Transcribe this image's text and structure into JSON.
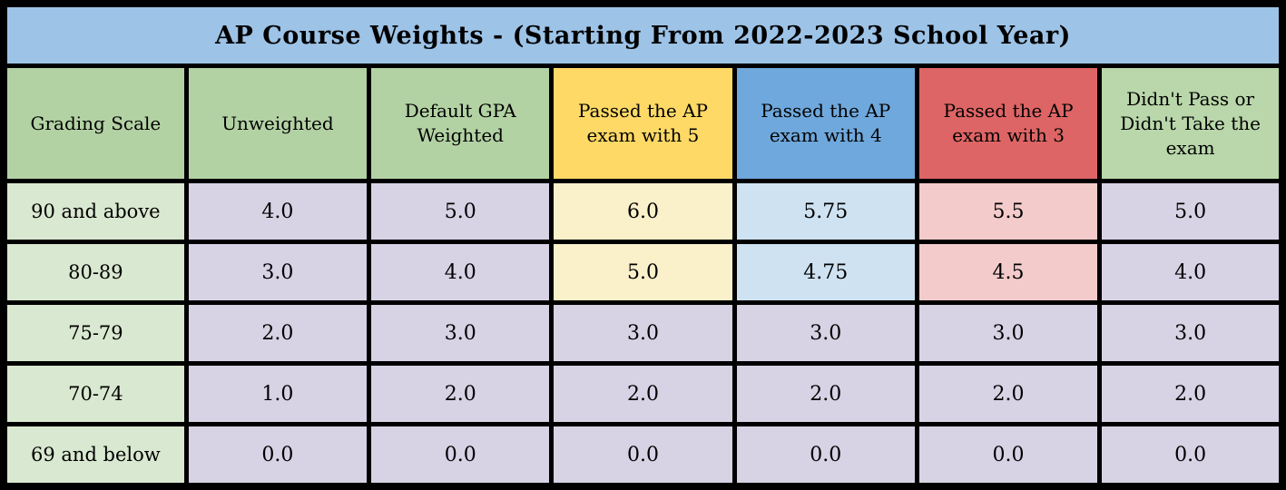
{
  "title": "AP Course Weights - (Starting From 2022-2023 School Year)",
  "colors": {
    "border": "#000000",
    "title_bg": "#9DC3E7",
    "header_green": "#B3D2A4",
    "header_yellow": "#FED966",
    "header_blue": "#6FA8DC",
    "header_red": "#DE6565",
    "header_light_green": "#B9D7AA",
    "row_label_green": "#D9E8D0",
    "cell_purple": "#D8D2E5",
    "cell_yellow": "#FAF0CA",
    "cell_blue": "#CFE2F1",
    "cell_pink": "#F3CBCB"
  },
  "table": {
    "headers": [
      "Grading Scale",
      "Unweighted",
      "Default GPA Weighted",
      "Passed the AP exam with 5",
      "Passed the AP exam with 4",
      "Passed the AP exam with 3",
      "Didn't Pass or Didn't Take the exam"
    ],
    "rows": [
      {
        "label": "90 and above",
        "values": [
          "4.0",
          "5.0",
          "6.0",
          "5.75",
          "5.5",
          "5.0"
        ]
      },
      {
        "label": "80-89",
        "values": [
          "3.0",
          "4.0",
          "5.0",
          "4.75",
          "4.5",
          "4.0"
        ]
      },
      {
        "label": "75-79",
        "values": [
          "2.0",
          "3.0",
          "3.0",
          "3.0",
          "3.0",
          "3.0"
        ]
      },
      {
        "label": "70-74",
        "values": [
          "1.0",
          "2.0",
          "2.0",
          "2.0",
          "2.0",
          "2.0"
        ]
      },
      {
        "label": "69 and below",
        "values": [
          "0.0",
          "0.0",
          "0.0",
          "0.0",
          "0.0",
          "0.0"
        ]
      }
    ]
  },
  "chart_data": {
    "type": "table",
    "title": "AP Course Weights - (Starting From 2022-2023 School Year)",
    "columns": [
      "Grading Scale",
      "Unweighted",
      "Default GPA Weighted",
      "Passed the AP exam with 5",
      "Passed the AP exam with 4",
      "Passed the AP exam with 3",
      "Didn't Pass or Didn't Take the exam"
    ],
    "rows": [
      [
        "90 and above",
        4.0,
        5.0,
        6.0,
        5.75,
        5.5,
        5.0
      ],
      [
        "80-89",
        3.0,
        4.0,
        5.0,
        4.75,
        4.5,
        4.0
      ],
      [
        "75-79",
        2.0,
        3.0,
        3.0,
        3.0,
        3.0,
        3.0
      ],
      [
        "70-74",
        1.0,
        2.0,
        2.0,
        2.0,
        2.0,
        2.0
      ],
      [
        "69 and below",
        0.0,
        0.0,
        0.0,
        0.0,
        0.0,
        0.0
      ]
    ]
  }
}
